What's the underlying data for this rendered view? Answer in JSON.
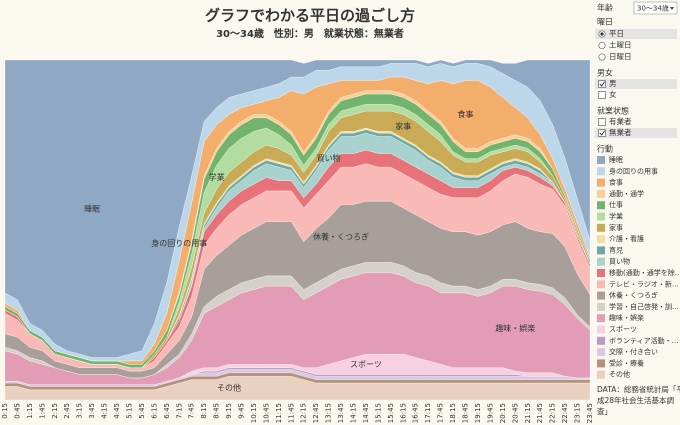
{
  "title": "グラフでわかる平日の過ごし方",
  "subtitle": "30〜34歳　性別：男　就業状態：無業者",
  "filters": {
    "age": {
      "label": "年齢",
      "value": "30〜34歳"
    },
    "weekday": {
      "label": "曜日",
      "options": [
        "平日",
        "土曜日",
        "日曜日"
      ],
      "selected": 0
    },
    "sex": {
      "label": "男女",
      "options": [
        "男",
        "女"
      ],
      "checked": [
        true,
        false
      ]
    },
    "employment": {
      "label": "就業状態",
      "options": [
        "有業者",
        "無業者"
      ],
      "checked": [
        false,
        true
      ]
    }
  },
  "source": [
    "DATA：総務省統計局「平",
    "成28年社会生活基本調",
    "査」"
  ],
  "chart_data": {
    "type": "stacked-area",
    "legend_title": "行動",
    "ylim": [
      0,
      100
    ],
    "inline_labels": [
      0,
      1,
      2,
      9,
      6,
      5,
      12,
      14,
      15,
      19
    ],
    "categories": [
      "0:15",
      "0:45",
      "1:15",
      "1:45",
      "2:15",
      "2:45",
      "3:15",
      "3:45",
      "4:15",
      "4:45",
      "5:15",
      "5:45",
      "6:15",
      "6:45",
      "7:15",
      "7:45",
      "8:15",
      "8:45",
      "9:15",
      "9:45",
      "10:15",
      "10:45",
      "11:15",
      "11:45",
      "12:15",
      "12:45",
      "13:15",
      "13:45",
      "14:15",
      "14:45",
      "15:15",
      "15:45",
      "16:15",
      "16:45",
      "17:15",
      "17:45",
      "18:15",
      "18:45",
      "19:15",
      "19:45",
      "20:15",
      "20:45",
      "21:15",
      "21:45",
      "22:15",
      "22:45",
      "23:15",
      "23:45"
    ],
    "series": [
      {
        "name": "睡眠",
        "color": "#8fa8c4",
        "values": [
          68.5,
          70.5,
          77.5,
          79.5,
          83.5,
          85.5,
          86.5,
          87.5,
          87.5,
          87.5,
          86.5,
          85.5,
          77.5,
          65.5,
          49,
          34,
          18,
          14,
          11,
          10,
          9,
          8,
          7,
          5,
          4,
          3,
          3,
          2,
          2,
          2,
          2,
          1,
          1,
          1,
          1,
          1,
          1,
          1,
          1,
          2,
          3,
          5,
          8,
          12,
          19,
          29,
          41,
          53
        ]
      },
      {
        "name": "身の回りの用事",
        "color": "#bcd6ea",
        "values": [
          3,
          3,
          2,
          2,
          2,
          1,
          1,
          1,
          1,
          1,
          2,
          3,
          6,
          9,
          10,
          8,
          6,
          5,
          5,
          4,
          4,
          4,
          4,
          4,
          5,
          5,
          4,
          4,
          4,
          4,
          4,
          4,
          4,
          5,
          5,
          5,
          5,
          5,
          5,
          6,
          7,
          8,
          9,
          10,
          10,
          9,
          7,
          5
        ]
      },
      {
        "name": "食事",
        "color": "#f4ae6c",
        "values": [
          1,
          1,
          0,
          0,
          0,
          0,
          0,
          0,
          0,
          0,
          1,
          1,
          2,
          5,
          9,
          11,
          10,
          7,
          5,
          4,
          3,
          4,
          7,
          12,
          17,
          14,
          8,
          5,
          4,
          3,
          3,
          4,
          5,
          6,
          8,
          12,
          16,
          20,
          20,
          16,
          12,
          8,
          6,
          4,
          3,
          2,
          2,
          1
        ]
      },
      {
        "name": "通勤・通学",
        "color": "#f8cf98",
        "values": [
          0,
          0,
          0,
          0,
          0,
          0,
          0,
          0,
          0,
          0,
          0,
          0,
          0,
          0,
          1,
          1,
          1,
          1,
          1,
          1,
          1,
          1,
          1,
          1,
          1,
          1,
          1,
          1,
          1,
          1,
          1,
          1,
          1,
          1,
          1,
          1,
          1,
          1,
          1,
          1,
          1,
          1,
          1,
          1,
          0,
          0,
          0,
          0
        ]
      },
      {
        "name": "仕事",
        "color": "#72b46c",
        "values": [
          1,
          1,
          1,
          1,
          1,
          1,
          1,
          1,
          1,
          1,
          1,
          1,
          1,
          2,
          2,
          3,
          4,
          4,
          4,
          4,
          4,
          3,
          3,
          3,
          3,
          3,
          3,
          3,
          3,
          3,
          3,
          3,
          3,
          3,
          3,
          3,
          3,
          2,
          2,
          2,
          2,
          2,
          2,
          2,
          2,
          1,
          1,
          1
        ]
      },
      {
        "name": "学業",
        "color": "#b3dca0",
        "values": [
          0,
          0,
          0,
          0,
          0,
          0,
          0,
          0,
          0,
          0,
          0,
          0,
          0,
          0,
          2,
          4,
          6,
          7,
          7,
          7,
          6,
          5,
          4,
          3,
          2,
          2,
          2,
          2,
          2,
          2,
          2,
          2,
          2,
          2,
          2,
          2,
          1,
          1,
          1,
          1,
          1,
          1,
          1,
          1,
          0,
          0,
          0,
          0
        ]
      },
      {
        "name": "家事",
        "color": "#c9aa55",
        "values": [
          0,
          0,
          0,
          0,
          0,
          0,
          0,
          0,
          0,
          0,
          0,
          0,
          1,
          1,
          2,
          3,
          3,
          4,
          4,
          4,
          4,
          4,
          4,
          3,
          3,
          3,
          4,
          4,
          5,
          5,
          6,
          6,
          7,
          7,
          7,
          6,
          5,
          4,
          4,
          4,
          3,
          3,
          3,
          2,
          2,
          1,
          1,
          0
        ]
      },
      {
        "name": "介護・看護",
        "color": "#f3dfa0",
        "values": [
          0,
          0,
          0,
          0,
          0,
          0,
          0,
          0,
          0,
          0,
          0,
          0,
          0,
          0,
          0.5,
          0.5,
          0.5,
          0.5,
          0.5,
          0.5,
          0.5,
          0.5,
          0.5,
          0.5,
          0.5,
          0.5,
          0.5,
          0.5,
          0.5,
          0.5,
          0.5,
          0.5,
          0.5,
          0.5,
          0.5,
          0.5,
          0.5,
          0.5,
          0.5,
          0.5,
          0.5,
          0.5,
          0.5,
          0.5,
          0,
          0,
          0,
          0
        ]
      },
      {
        "name": "育児",
        "color": "#6fa8a6",
        "values": [
          0,
          0,
          0,
          0,
          0,
          0,
          0,
          0,
          0,
          0,
          0,
          0,
          0,
          0,
          1,
          1,
          1,
          1,
          1,
          1,
          1,
          1,
          1,
          1,
          1,
          1,
          1,
          1,
          1,
          1,
          1,
          1,
          1,
          1,
          1,
          1,
          1,
          1,
          1,
          1,
          1,
          1,
          1,
          1,
          0,
          0,
          0,
          0
        ]
      },
      {
        "name": "買い物",
        "color": "#a8d2ce",
        "values": [
          0,
          0,
          0,
          0,
          0,
          0,
          0,
          0,
          0,
          0,
          0,
          0,
          0,
          0,
          0,
          1,
          1,
          2,
          3,
          3,
          4,
          4,
          4,
          3,
          3,
          4,
          5,
          5,
          5,
          5,
          5,
          5,
          5,
          5,
          4,
          4,
          3,
          2,
          2,
          2,
          1,
          1,
          1,
          1,
          1,
          0,
          0,
          0
        ]
      },
      {
        "name": "移動(通勤・通学を除…",
        "color": "#e8727a",
        "values": [
          1,
          1,
          0,
          0,
          0,
          0,
          0,
          0,
          0,
          0,
          0,
          0,
          1,
          1,
          2,
          3,
          4,
          4,
          4,
          4,
          4,
          4,
          3,
          3,
          3,
          3,
          4,
          4,
          4,
          4,
          4,
          4,
          4,
          4,
          4,
          4,
          3,
          3,
          3,
          3,
          3,
          2,
          2,
          2,
          1,
          1,
          1,
          1
        ]
      },
      {
        "name": "テレビ・ラジオ・新…",
        "color": "#f9b9b6",
        "values": [
          6,
          5,
          4,
          3,
          2,
          2,
          2,
          1,
          1,
          1,
          1,
          1,
          2,
          3,
          4,
          6,
          7,
          8,
          9,
          9,
          9,
          9,
          9,
          9,
          10,
          10,
          11,
          11,
          11,
          11,
          10,
          10,
          10,
          10,
          10,
          10,
          10,
          10,
          11,
          12,
          13,
          14,
          15,
          14,
          13,
          12,
          10,
          8
        ]
      },
      {
        "name": "休養・くつろぎ",
        "color": "#a89f9b",
        "values": [
          4,
          4,
          3,
          3,
          2,
          2,
          2,
          2,
          2,
          2,
          2,
          2,
          2,
          3,
          4,
          5,
          11,
          12,
          13,
          14,
          15,
          16,
          16,
          16,
          14,
          16,
          17,
          19,
          18,
          18,
          18,
          18,
          17,
          17,
          16,
          16,
          16,
          16,
          16,
          16,
          16,
          17,
          16,
          15.5,
          16,
          15,
          12,
          9.5
        ]
      },
      {
        "name": "学習・自己啓発・訓…",
        "color": "#d6d0ca",
        "values": [
          1,
          1,
          1,
          1,
          0,
          0,
          0,
          0,
          0,
          0,
          0,
          0,
          0,
          1,
          1,
          2,
          2,
          3,
          3,
          3,
          3,
          3,
          3,
          3,
          3,
          3,
          3,
          3,
          3,
          3,
          3,
          3,
          3,
          3,
          3,
          3,
          2,
          2,
          2,
          2,
          2,
          2,
          2,
          2,
          2,
          2,
          1,
          1
        ]
      },
      {
        "name": "趣味・娯楽",
        "color": "#e29cb6",
        "values": [
          9,
          8,
          7,
          6,
          5,
          4,
          3,
          3,
          3,
          3,
          2,
          2,
          3,
          4,
          6,
          9,
          16,
          18,
          19,
          21,
          22,
          23,
          23,
          23,
          20,
          22,
          23,
          24,
          24,
          24,
          24,
          24,
          23,
          22,
          22,
          21,
          22,
          22,
          21,
          22,
          24,
          25,
          24.5,
          24,
          23,
          21,
          17.5,
          14
        ]
      },
      {
        "name": "スポーツ",
        "color": "#f7d0e1",
        "values": [
          0,
          0,
          0,
          0,
          0,
          0,
          0,
          0,
          0,
          0,
          0,
          0,
          0,
          0,
          0,
          1,
          1,
          1,
          1,
          1,
          1,
          1,
          1,
          1,
          1,
          2,
          3,
          4,
          5,
          6,
          6,
          6,
          6,
          5,
          4,
          3,
          2,
          2,
          2,
          2,
          2,
          1,
          1,
          1,
          1,
          0,
          0,
          0
        ]
      },
      {
        "name": "ボランティア活動・…",
        "color": "#b89bc6",
        "values": [
          0,
          0,
          0,
          0,
          0,
          0,
          0,
          0,
          0,
          0,
          0,
          0,
          0,
          0,
          0,
          0,
          0.5,
          0.5,
          0.5,
          0.5,
          0.5,
          0.5,
          0.5,
          0.5,
          0.5,
          0.5,
          0.5,
          0.5,
          0.5,
          0.5,
          0.5,
          0.5,
          0.5,
          0.5,
          0.5,
          0.5,
          0.5,
          0.5,
          0.5,
          0.5,
          0.5,
          0.5,
          0,
          0,
          0,
          0,
          0,
          0
        ]
      },
      {
        "name": "交際・付き合い",
        "color": "#d9c8de",
        "values": [
          0.5,
          0.5,
          0.5,
          0.5,
          0.5,
          0.5,
          0.5,
          0.5,
          0.5,
          0.5,
          0.5,
          0.5,
          0.5,
          0.5,
          0.5,
          0.5,
          1,
          1,
          1,
          1,
          1,
          1,
          1,
          1,
          1,
          1,
          1,
          1,
          1,
          1,
          1,
          1,
          1,
          1,
          1,
          1,
          1,
          1,
          1,
          1,
          1,
          1,
          1,
          1,
          1,
          1,
          0.5,
          0.5
        ]
      },
      {
        "name": "受診・療養",
        "color": "#b4917b",
        "values": [
          1,
          1,
          1,
          1,
          1,
          1,
          1,
          1,
          1,
          1,
          1,
          1,
          1,
          1,
          1,
          1,
          1,
          1,
          1,
          1,
          1,
          1,
          1,
          1,
          1,
          1,
          1,
          1,
          1,
          1,
          1,
          1,
          1,
          1,
          1,
          1,
          1,
          1,
          1,
          1,
          1,
          1,
          1,
          1,
          1,
          1,
          1,
          1
        ]
      },
      {
        "name": "その他",
        "color": "#e9d0bf",
        "values": [
          4,
          4,
          3,
          3,
          3,
          3,
          3,
          3,
          3,
          3,
          3,
          3,
          3,
          4,
          5,
          6,
          6,
          6,
          7,
          7,
          7,
          7,
          7,
          7,
          6,
          5,
          5,
          5,
          5,
          5,
          5,
          5,
          5,
          5,
          5,
          5,
          5,
          5,
          5,
          5,
          5,
          5,
          5,
          5,
          5,
          5,
          5,
          5
        ]
      }
    ]
  }
}
